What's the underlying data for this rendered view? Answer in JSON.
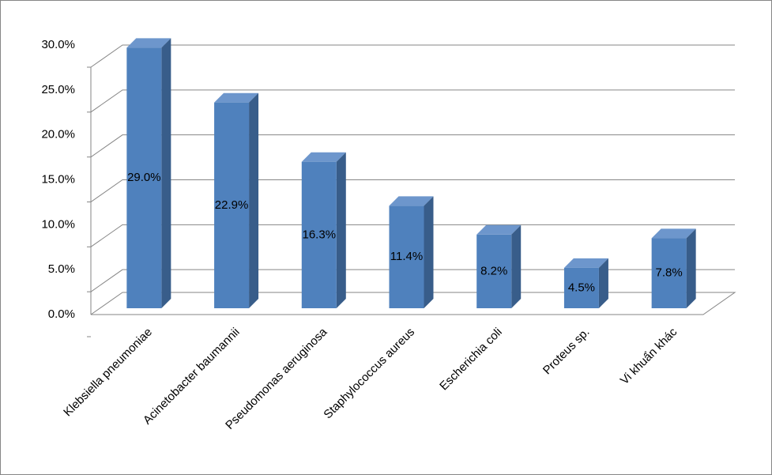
{
  "chart_data": {
    "type": "bar3d",
    "categories": [
      "Klebsiella pneumoniae",
      "Acinetobacter baumannii",
      "Pseudomonas aeruginosa",
      "Staphylococcus aureus",
      "Escherichia coli",
      "Proteus sp.",
      "Vi khuẩn khác"
    ],
    "values": [
      29.0,
      22.9,
      16.3,
      11.4,
      8.2,
      4.5,
      7.8
    ],
    "value_labels": [
      "29.0%",
      "22.9%",
      "16.3%",
      "11.4%",
      "8.2%",
      "4.5%",
      "7.8%"
    ],
    "color": "#4f81bd",
    "ylim": [
      0,
      30
    ],
    "yticks": [
      {
        "value": 0,
        "label": "0.0%"
      },
      {
        "value": 5,
        "label": "5.0%"
      },
      {
        "value": 10,
        "label": "10.0%"
      },
      {
        "value": 15,
        "label": "15.0%"
      },
      {
        "value": 20,
        "label": "20.0%"
      },
      {
        "value": 25,
        "label": "25.0%"
      },
      {
        "value": 30,
        "label": "30.0%"
      }
    ],
    "grid": true
  }
}
